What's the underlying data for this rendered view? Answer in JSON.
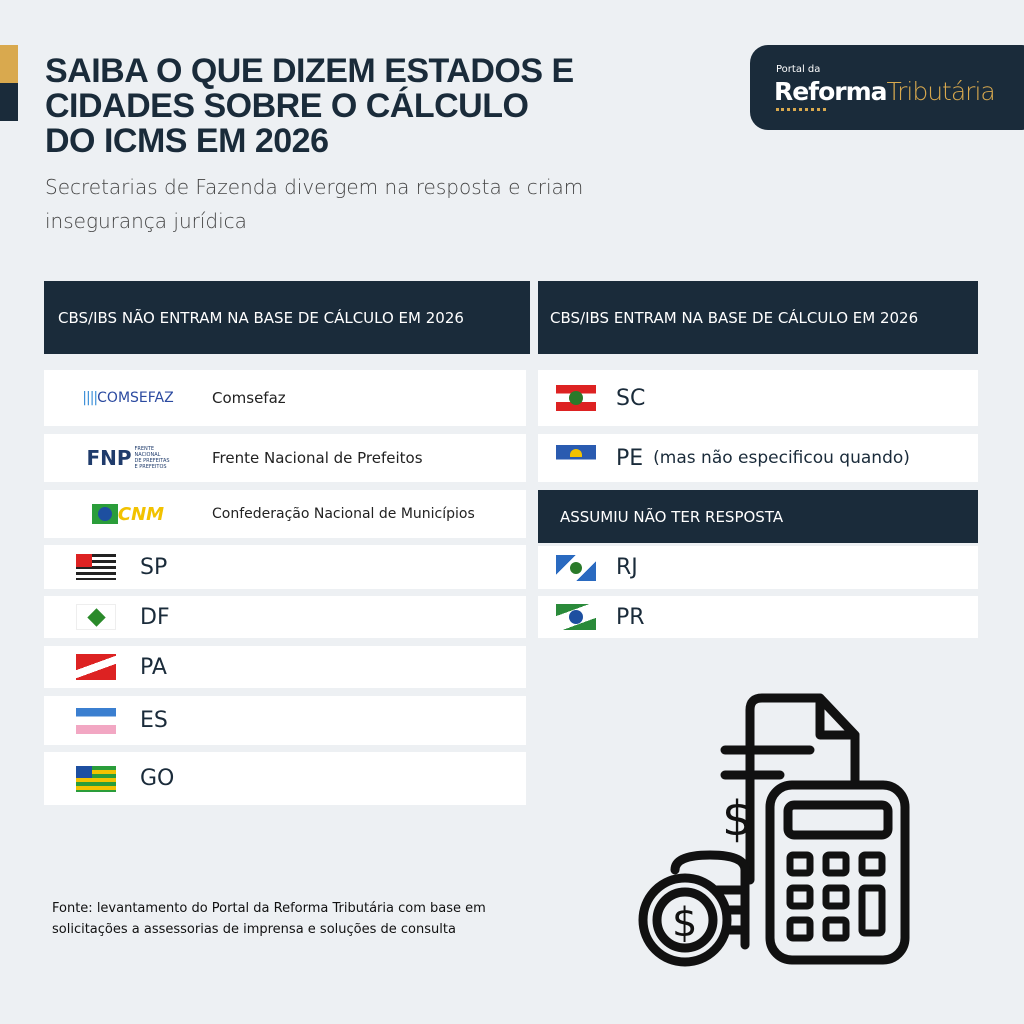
{
  "title": [
    "SAIBA O QUE DIZEM ESTADOS E",
    "CIDADES SOBRE O CÁLCULO",
    "DO ICMS EM 2026"
  ],
  "subtitle": "Secretarias de Fazenda divergem na resposta e criam insegurança jurídica",
  "logo": {
    "small": "Portal da",
    "bold": "Reforma",
    "light": "Tributária"
  },
  "colors": {
    "navy": "#1a2b3a",
    "gold": "#d9a94e",
    "background": "#edf0f3"
  },
  "left": {
    "header": "CBS/IBS NÃO ENTRAM NA BASE DE CÁLCULO EM 2026",
    "orgs": [
      {
        "logo": "COMSEFAZ",
        "name": "Comsefaz"
      },
      {
        "logo": "FNP",
        "name": "Frente Nacional de Prefeitos"
      },
      {
        "logo": "CNM",
        "name": "Confederação Nacional de Municípios"
      }
    ],
    "states": [
      "SP",
      "DF",
      "PA",
      "ES",
      "GO"
    ]
  },
  "right": {
    "header": "CBS/IBS ENTRAM NA BASE DE CÁLCULO EM 2026",
    "states": [
      {
        "code": "SC",
        "note": ""
      },
      {
        "code": "PE",
        "note": "(mas não especificou quando)"
      }
    ],
    "header2": "ASSUMIU NÃO TER RESPOSTA",
    "states2": [
      "RJ",
      "PR"
    ]
  },
  "source": "Fonte: levantamento do Portal da Reforma Tributária com base em solicitações a assessorias de imprensa e soluções de consulta",
  "illustration": "calculator-invoice-coins-icon"
}
